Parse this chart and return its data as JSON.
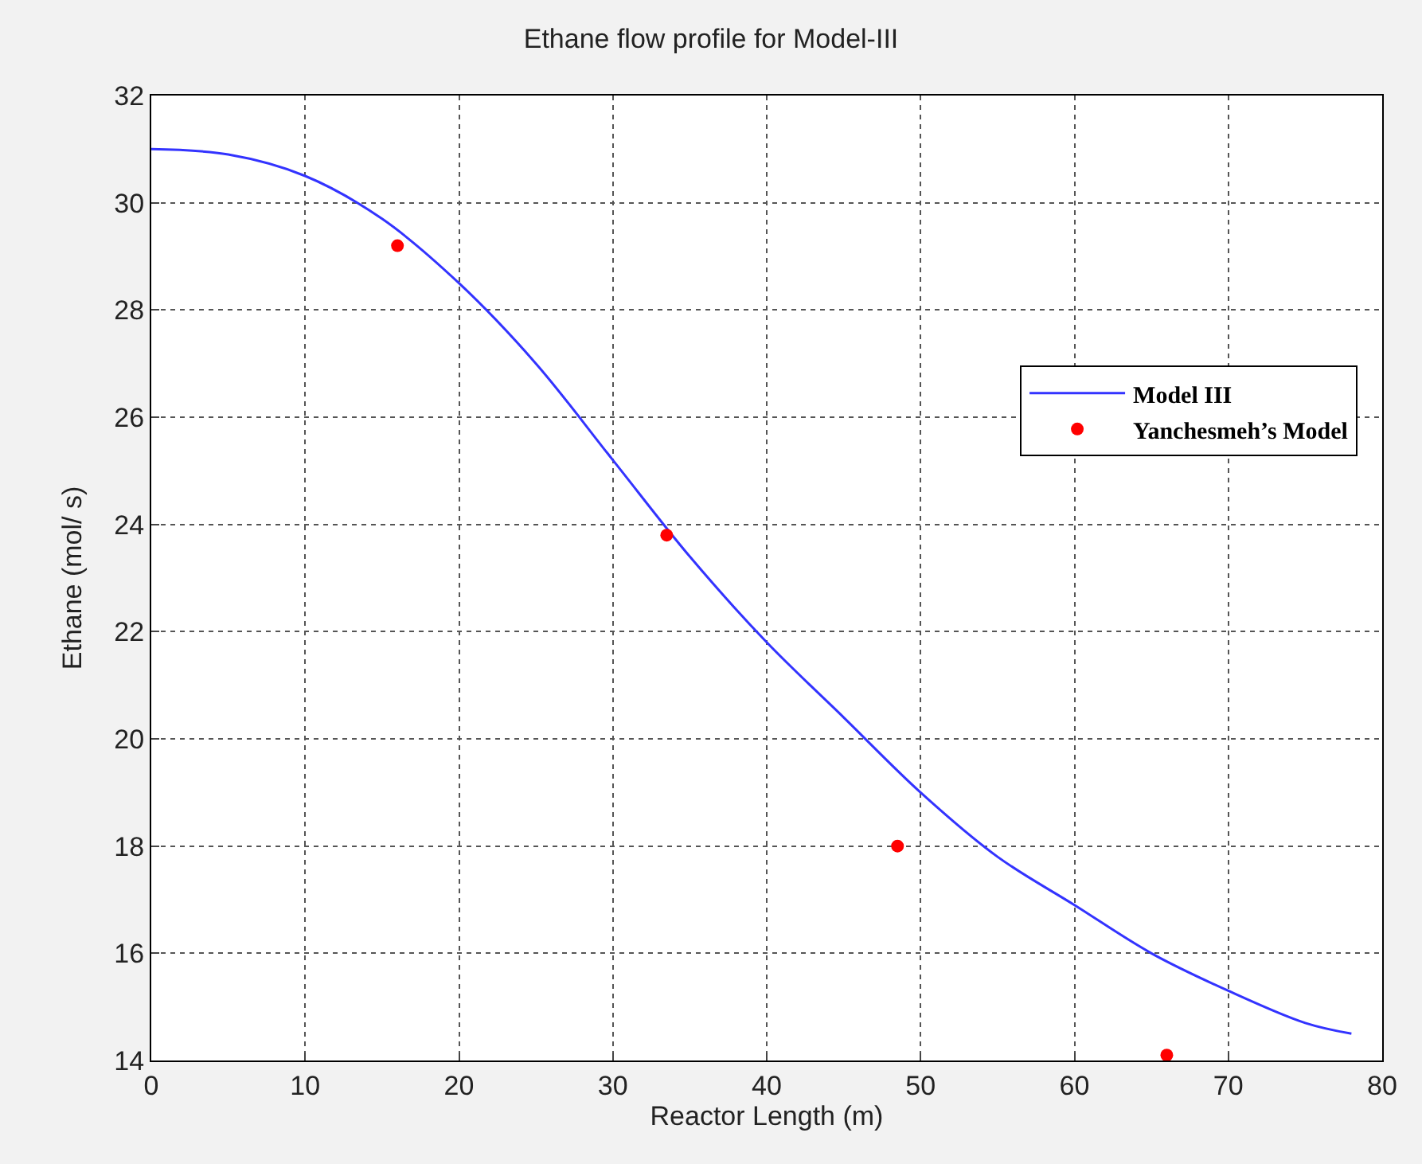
{
  "chart_data": {
    "type": "line",
    "title": "Ethane flow profile for Model-III",
    "xlabel": "Reactor Length (m)",
    "ylabel": "Ethane (mol/ s)",
    "xlim": [
      0,
      80
    ],
    "xticks": [
      0,
      10,
      20,
      30,
      40,
      50,
      60,
      70,
      80
    ],
    "ylim": [
      14,
      32
    ],
    "yticks": [
      14,
      16,
      18,
      20,
      22,
      24,
      26,
      28,
      30,
      32
    ],
    "grid": true,
    "legend": "top right",
    "series": [
      {
        "name": "Model III",
        "color": "#3333ff",
        "line_style": "solid",
        "marker": "none",
        "x": [
          0,
          5,
          10,
          15,
          20,
          25,
          30,
          35,
          40,
          45,
          50,
          55,
          60,
          65,
          70,
          75,
          78
        ],
        "values": [
          31.0,
          30.9,
          30.5,
          29.7,
          28.5,
          27.0,
          25.2,
          23.4,
          21.8,
          20.4,
          19.0,
          17.8,
          16.9,
          16.0,
          15.3,
          14.7,
          14.5
        ]
      },
      {
        "name": "Yanchesmeh’s Model",
        "type": "scatter",
        "color": "#ff0000",
        "marker": "circle",
        "x": [
          16,
          33.5,
          48.5,
          66
        ],
        "values": [
          29.2,
          23.8,
          18.0,
          14.1
        ]
      }
    ]
  }
}
